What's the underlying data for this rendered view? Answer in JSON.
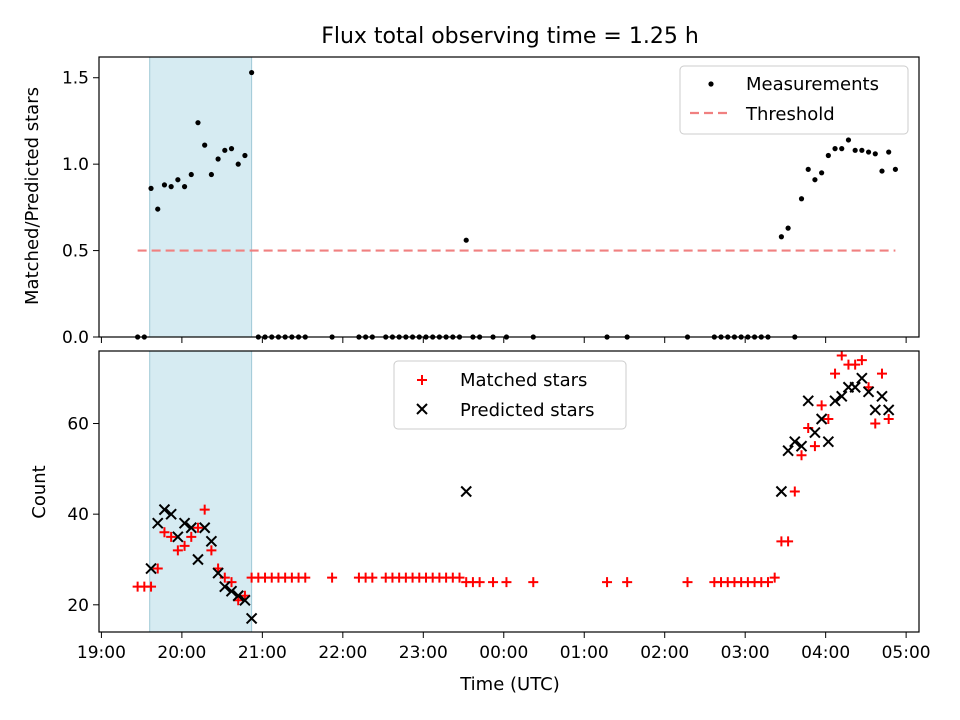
{
  "chart_data": [
    {
      "type": "scatter",
      "title": "Flux total observing time = 1.25 h",
      "ylabel": "Matched/Predicted stars",
      "xlabel": "",
      "xlim": [
        "19:00",
        "05:00"
      ],
      "ylim": [
        0,
        1.62
      ],
      "yticks": [
        "0.0",
        "0.5",
        "1.0",
        "1.5"
      ],
      "highlight_span": [
        "19:36",
        "20:52"
      ],
      "highlight_color": "#add8e6",
      "legend_position": "top-right",
      "series": [
        {
          "name": "Measurements",
          "color": "#000000",
          "marker": "dot",
          "points": [
            [
              "19:27",
              0
            ],
            [
              "19:32",
              0
            ],
            [
              "19:37",
              0.86
            ],
            [
              "19:42",
              0.74
            ],
            [
              "19:47",
              0.88
            ],
            [
              "19:52",
              0.87
            ],
            [
              "19:57",
              0.91
            ],
            [
              "20:02",
              0.87
            ],
            [
              "20:07",
              0.94
            ],
            [
              "20:12",
              1.24
            ],
            [
              "20:17",
              1.11
            ],
            [
              "20:22",
              0.94
            ],
            [
              "20:27",
              1.03
            ],
            [
              "20:32",
              1.08
            ],
            [
              "20:37",
              1.09
            ],
            [
              "20:42",
              1.0
            ],
            [
              "20:47",
              1.05
            ],
            [
              "20:52",
              1.53
            ],
            [
              "20:57",
              0
            ],
            [
              "21:02",
              0
            ],
            [
              "21:07",
              0
            ],
            [
              "21:12",
              0
            ],
            [
              "21:17",
              0
            ],
            [
              "21:22",
              0
            ],
            [
              "21:27",
              0
            ],
            [
              "21:32",
              0
            ],
            [
              "21:52",
              0
            ],
            [
              "22:12",
              0
            ],
            [
              "22:17",
              0
            ],
            [
              "22:22",
              0
            ],
            [
              "22:32",
              0
            ],
            [
              "22:37",
              0
            ],
            [
              "22:42",
              0
            ],
            [
              "22:47",
              0
            ],
            [
              "22:52",
              0
            ],
            [
              "22:57",
              0
            ],
            [
              "23:02",
              0
            ],
            [
              "23:07",
              0
            ],
            [
              "23:12",
              0
            ],
            [
              "23:17",
              0
            ],
            [
              "23:22",
              0
            ],
            [
              "23:27",
              0
            ],
            [
              "23:32",
              0.56
            ],
            [
              "23:37",
              0
            ],
            [
              "23:42",
              0
            ],
            [
              "23:52",
              0
            ],
            [
              "00:02",
              0
            ],
            [
              "00:22",
              0
            ],
            [
              "01:17",
              0
            ],
            [
              "01:32",
              0
            ],
            [
              "02:17",
              0
            ],
            [
              "02:37",
              0
            ],
            [
              "02:42",
              0
            ],
            [
              "02:47",
              0
            ],
            [
              "02:52",
              0
            ],
            [
              "02:57",
              0
            ],
            [
              "03:02",
              0
            ],
            [
              "03:07",
              0
            ],
            [
              "03:12",
              0
            ],
            [
              "03:17",
              0
            ],
            [
              "03:27",
              0.58
            ],
            [
              "03:32",
              0.63
            ],
            [
              "03:37",
              0
            ],
            [
              "03:42",
              0.8
            ],
            [
              "03:47",
              0.97
            ],
            [
              "03:52",
              0.91
            ],
            [
              "03:57",
              0.95
            ],
            [
              "04:02",
              1.05
            ],
            [
              "04:07",
              1.09
            ],
            [
              "04:12",
              1.09
            ],
            [
              "04:17",
              1.14
            ],
            [
              "04:22",
              1.08
            ],
            [
              "04:27",
              1.08
            ],
            [
              "04:32",
              1.07
            ],
            [
              "04:37",
              1.06
            ],
            [
              "04:42",
              0.96
            ],
            [
              "04:47",
              1.07
            ],
            [
              "04:52",
              0.97
            ]
          ]
        },
        {
          "name": "Threshold",
          "color": "#f08080",
          "marker": "dashed-line",
          "points": [
            [
              "19:27",
              0.5
            ],
            [
              "04:52",
              0.5
            ]
          ]
        }
      ]
    },
    {
      "type": "scatter",
      "title": "",
      "xlabel": "Time (UTC)",
      "ylabel": "Count",
      "xlim": [
        "19:00",
        "05:00"
      ],
      "ylim": [
        14,
        76
      ],
      "yticks": [
        "20",
        "40",
        "60"
      ],
      "xticks": [
        "19:00",
        "20:00",
        "21:00",
        "22:00",
        "23:00",
        "00:00",
        "01:00",
        "02:00",
        "03:00",
        "04:00",
        "05:00"
      ],
      "highlight_span": [
        "19:36",
        "20:52"
      ],
      "highlight_color": "#add8e6",
      "legend_position": "top-center",
      "series": [
        {
          "name": "Matched stars",
          "color": "#ff0000",
          "marker": "plus",
          "points": [
            [
              "19:27",
              24
            ],
            [
              "19:32",
              24
            ],
            [
              "19:37",
              24
            ],
            [
              "19:42",
              28
            ],
            [
              "19:47",
              36
            ],
            [
              "19:52",
              35
            ],
            [
              "19:57",
              32
            ],
            [
              "20:02",
              33
            ],
            [
              "20:07",
              35
            ],
            [
              "20:12",
              37
            ],
            [
              "20:17",
              41
            ],
            [
              "20:22",
              32
            ],
            [
              "20:27",
              28
            ],
            [
              "20:32",
              26
            ],
            [
              "20:37",
              25
            ],
            [
              "20:42",
              21
            ],
            [
              "20:47",
              22
            ],
            [
              "20:52",
              26
            ],
            [
              "20:57",
              26
            ],
            [
              "21:02",
              26
            ],
            [
              "21:07",
              26
            ],
            [
              "21:12",
              26
            ],
            [
              "21:17",
              26
            ],
            [
              "21:22",
              26
            ],
            [
              "21:27",
              26
            ],
            [
              "21:32",
              26
            ],
            [
              "21:52",
              26
            ],
            [
              "22:12",
              26
            ],
            [
              "22:17",
              26
            ],
            [
              "22:22",
              26
            ],
            [
              "22:32",
              26
            ],
            [
              "22:37",
              26
            ],
            [
              "22:42",
              26
            ],
            [
              "22:47",
              26
            ],
            [
              "22:52",
              26
            ],
            [
              "22:57",
              26
            ],
            [
              "23:02",
              26
            ],
            [
              "23:07",
              26
            ],
            [
              "23:12",
              26
            ],
            [
              "23:17",
              26
            ],
            [
              "23:22",
              26
            ],
            [
              "23:27",
              26
            ],
            [
              "23:32",
              25
            ],
            [
              "23:37",
              25
            ],
            [
              "23:42",
              25
            ],
            [
              "23:52",
              25
            ],
            [
              "00:02",
              25
            ],
            [
              "00:22",
              25
            ],
            [
              "01:17",
              25
            ],
            [
              "01:32",
              25
            ],
            [
              "02:17",
              25
            ],
            [
              "02:37",
              25
            ],
            [
              "02:42",
              25
            ],
            [
              "02:47",
              25
            ],
            [
              "02:52",
              25
            ],
            [
              "02:57",
              25
            ],
            [
              "03:02",
              25
            ],
            [
              "03:07",
              25
            ],
            [
              "03:12",
              25
            ],
            [
              "03:17",
              25
            ],
            [
              "03:22",
              26
            ],
            [
              "03:27",
              34
            ],
            [
              "03:32",
              34
            ],
            [
              "03:37",
              45
            ],
            [
              "03:42",
              53
            ],
            [
              "03:47",
              59
            ],
            [
              "03:52",
              55
            ],
            [
              "03:57",
              64
            ],
            [
              "04:02",
              61
            ],
            [
              "04:07",
              71
            ],
            [
              "04:12",
              75
            ],
            [
              "04:17",
              73
            ],
            [
              "04:22",
              73
            ],
            [
              "04:27",
              74
            ],
            [
              "04:32",
              68
            ],
            [
              "04:37",
              60
            ],
            [
              "04:42",
              71
            ],
            [
              "04:47",
              61
            ]
          ]
        },
        {
          "name": "Predicted stars",
          "color": "#000000",
          "marker": "x",
          "points": [
            [
              "19:37",
              28
            ],
            [
              "19:42",
              38
            ],
            [
              "19:47",
              41
            ],
            [
              "19:52",
              40
            ],
            [
              "19:57",
              35
            ],
            [
              "20:02",
              38
            ],
            [
              "20:07",
              37
            ],
            [
              "20:12",
              30
            ],
            [
              "20:17",
              37
            ],
            [
              "20:22",
              34
            ],
            [
              "20:27",
              27
            ],
            [
              "20:32",
              24
            ],
            [
              "20:37",
              23
            ],
            [
              "20:42",
              22
            ],
            [
              "20:47",
              21
            ],
            [
              "20:52",
              17
            ],
            [
              "23:32",
              45
            ],
            [
              "03:27",
              45
            ],
            [
              "03:32",
              54
            ],
            [
              "03:37",
              56
            ],
            [
              "03:42",
              55
            ],
            [
              "03:47",
              65
            ],
            [
              "03:52",
              58
            ],
            [
              "03:57",
              61
            ],
            [
              "04:02",
              56
            ],
            [
              "04:07",
              65
            ],
            [
              "04:12",
              66
            ],
            [
              "04:17",
              68
            ],
            [
              "04:22",
              68
            ],
            [
              "04:27",
              70
            ],
            [
              "04:32",
              67
            ],
            [
              "04:37",
              63
            ],
            [
              "04:42",
              66
            ],
            [
              "04:47",
              63
            ]
          ]
        }
      ]
    }
  ]
}
